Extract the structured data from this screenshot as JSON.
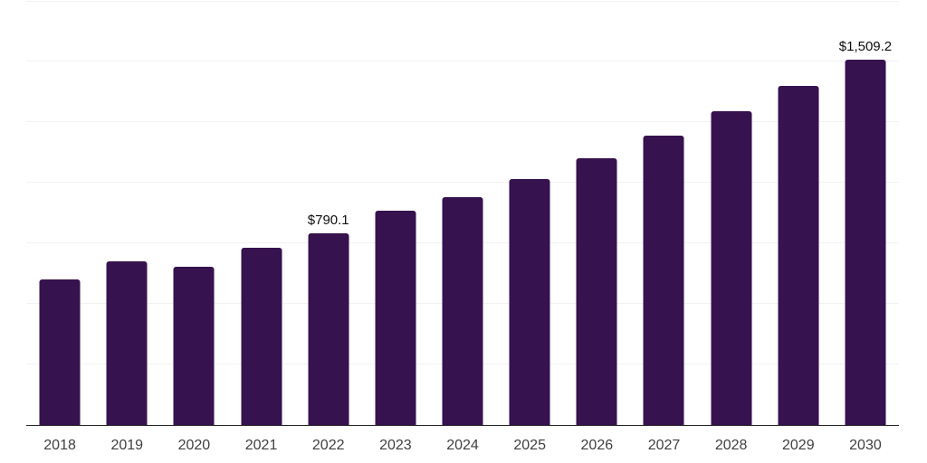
{
  "chart_data": {
    "type": "bar",
    "title": "",
    "xlabel": "",
    "ylabel": "",
    "categories": [
      "2018",
      "2019",
      "2020",
      "2021",
      "2022",
      "2023",
      "2024",
      "2025",
      "2026",
      "2027",
      "2028",
      "2029",
      "2030"
    ],
    "values": [
      601,
      676,
      652,
      731,
      790.1,
      883,
      941,
      1017,
      1103,
      1195,
      1295,
      1401,
      1509.2
    ],
    "annotations": [
      {
        "category": "2022",
        "text": "$790.1"
      },
      {
        "category": "2030",
        "text": "$1,509.2"
      }
    ],
    "ylim": [
      0,
      1750
    ],
    "grid_step": 250,
    "grid": "horizontal-only",
    "y_tick_labels": "none",
    "legend": "none",
    "colors": {
      "bar": "#36124E",
      "axis_line": "#262626",
      "gridline": "#F2F2F2",
      "value_label": "#0D0D0D",
      "tick_label": "#404040",
      "background": "#FFFFFF"
    }
  }
}
